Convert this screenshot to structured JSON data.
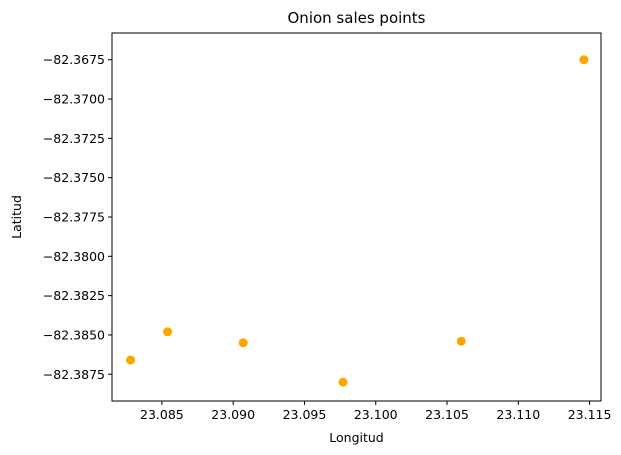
{
  "chart_data": {
    "type": "scatter",
    "title": "Onion sales points",
    "xlabel": "Longitud",
    "ylabel": "Latitud",
    "xlim": [
      23.0815,
      23.1158
    ],
    "ylim": [
      -82.3892,
      -82.3658
    ],
    "x_ticks": [
      23.085,
      23.09,
      23.095,
      23.1,
      23.105,
      23.11,
      23.115
    ],
    "x_tick_labels": [
      "23.085",
      "23.090",
      "23.095",
      "23.100",
      "23.105",
      "23.110",
      "23.115"
    ],
    "y_ticks": [
      -82.3675,
      -82.37,
      -82.3725,
      -82.375,
      -82.3775,
      -82.38,
      -82.3825,
      -82.385,
      -82.3875
    ],
    "y_tick_labels": [
      "−82.3675",
      "−82.3700",
      "−82.3725",
      "−82.3750",
      "−82.3775",
      "−82.3800",
      "−82.3825",
      "−82.3850",
      "−82.3875"
    ],
    "grid": false,
    "marker_color": "#ffa500",
    "points": [
      {
        "x": 23.0828,
        "y": -82.3866
      },
      {
        "x": 23.0854,
        "y": -82.3848
      },
      {
        "x": 23.0907,
        "y": -82.3855
      },
      {
        "x": 23.0977,
        "y": -82.388
      },
      {
        "x": 23.106,
        "y": -82.3854
      },
      {
        "x": 23.1146,
        "y": -82.3675
      }
    ]
  }
}
